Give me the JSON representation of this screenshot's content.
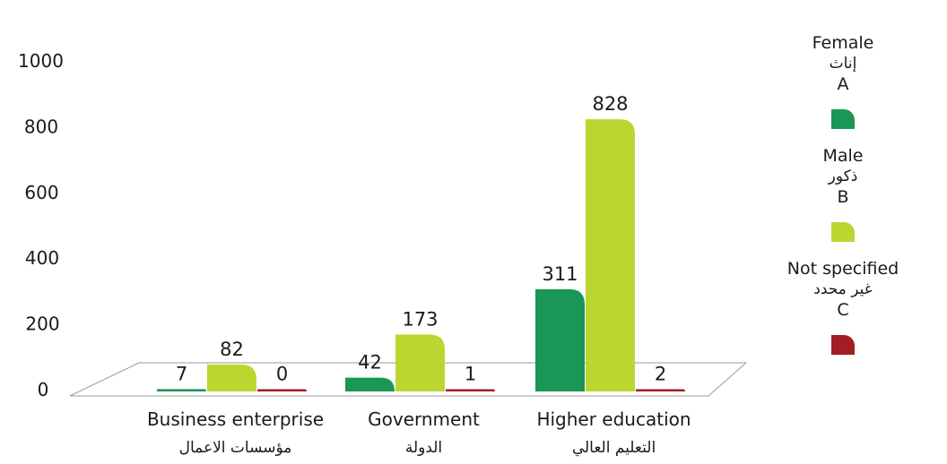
{
  "chart_data": {
    "type": "bar",
    "categories": [
      "Business enterprise",
      "Government",
      "Higher education"
    ],
    "categories_ar": [
      "مؤسسات الاعمال",
      "الدولة",
      "التعليم العالي"
    ],
    "series": [
      {
        "name": "Female",
        "name_ar": "إناث",
        "key": "A",
        "color": "#1a9656",
        "values": [
          7,
          42,
          311
        ]
      },
      {
        "name": "Male",
        "name_ar": "ذكور",
        "key": "B",
        "color": "#bcd631",
        "values": [
          82,
          173,
          828
        ]
      },
      {
        "name": "Not specified",
        "name_ar": "غير محدد",
        "key": "C",
        "color": "#a31d24",
        "values": [
          0,
          1,
          2
        ]
      }
    ],
    "y_ticks": [
      "0",
      "200",
      "400",
      "600",
      "800",
      "1000"
    ],
    "ylim": [
      0,
      1000
    ],
    "legend_position": "right",
    "grid": false
  }
}
